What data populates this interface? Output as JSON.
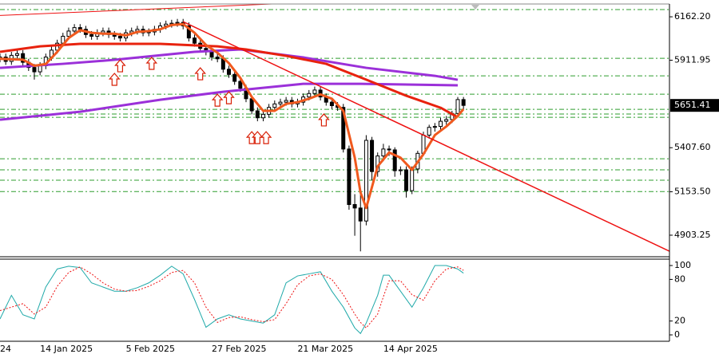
{
  "chart_data": [
    {
      "type": "candlestick",
      "categories": [
        "24",
        null,
        null,
        null,
        null,
        null,
        null,
        "14 Jan 2025",
        null,
        null,
        null,
        null,
        null,
        null,
        null,
        null,
        null,
        null,
        null,
        null,
        null,
        null,
        "5 Feb 2025",
        null,
        null,
        null,
        null,
        null,
        null,
        null,
        null,
        null,
        null,
        null,
        null,
        null,
        null,
        "27 Feb 2025",
        null,
        null,
        null,
        null,
        null,
        null,
        null,
        null,
        null,
        null,
        null,
        null,
        null,
        null,
        "21 Mar 2025",
        null,
        null,
        null,
        null,
        null,
        null,
        null,
        null,
        null,
        null,
        null,
        null,
        null,
        null,
        "14 Apr 2025",
        null,
        null,
        null,
        null,
        null,
        null,
        null,
        null,
        null,
        null,
        null,
        null,
        null,
        null
      ],
      "open": [
        5920,
        5930,
        5905,
        5940,
        5950,
        5900,
        5870,
        5845,
        5880,
        5930,
        5970,
        6010,
        6050,
        6080,
        6100,
        6090,
        6060,
        6050,
        6070,
        6080,
        6060,
        6050,
        6040,
        6070,
        6080,
        6090,
        6070,
        6075,
        6090,
        6110,
        6120,
        6125,
        6130,
        6110,
        6040,
        6010,
        5980,
        5960,
        5930,
        5920,
        5860,
        5830,
        5790,
        5750,
        5690,
        5620,
        5580,
        5600,
        5640,
        5660,
        5670,
        5680,
        5660,
        5670,
        5700,
        5720,
        5740,
        5700,
        5670,
        5650,
        5640,
        5400,
        5080,
        5060,
        4985,
        5450,
        5270,
        5360,
        5400,
        5395,
        5275,
        5280,
        5160,
        5285,
        5375,
        5480,
        5525,
        5530,
        5560,
        5570,
        5605,
        5685
      ],
      "high": [
        5950,
        5950,
        5960,
        5970,
        5970,
        5920,
        5890,
        5900,
        5950,
        5990,
        6030,
        6070,
        6100,
        6120,
        6120,
        6110,
        6080,
        6090,
        6100,
        6100,
        6080,
        6070,
        6090,
        6100,
        6110,
        6110,
        6095,
        6110,
        6130,
        6140,
        6145,
        6150,
        6150,
        6130,
        6060,
        6030,
        6000,
        5980,
        5950,
        5940,
        5880,
        5850,
        5810,
        5770,
        5710,
        5640,
        5620,
        5660,
        5680,
        5690,
        5700,
        5700,
        5690,
        5720,
        5740,
        5760,
        5760,
        5720,
        5690,
        5670,
        5660,
        5420,
        5140,
        5150,
        5480,
        5470,
        5380,
        5430,
        5420,
        5410,
        5300,
        5300,
        5300,
        5390,
        5500,
        5540,
        5550,
        5580,
        5590,
        5620,
        5700,
        5700
      ],
      "low": [
        5900,
        5885,
        5885,
        5920,
        5880,
        5850,
        5800,
        5825,
        5860,
        5910,
        5950,
        5990,
        6030,
        6060,
        6070,
        6040,
        6030,
        6030,
        6050,
        6040,
        6030,
        6020,
        6020,
        6050,
        6060,
        6050,
        6050,
        6055,
        6070,
        6090,
        6100,
        6105,
        6090,
        6020,
        5990,
        5960,
        5940,
        5910,
        5900,
        5840,
        5810,
        5770,
        5730,
        5670,
        5600,
        5560,
        5560,
        5580,
        5620,
        5640,
        5650,
        5640,
        5640,
        5650,
        5680,
        5700,
        5680,
        5650,
        5630,
        5620,
        5380,
        5050,
        4900,
        4810,
        4960,
        5220,
        5240,
        5330,
        5360,
        5240,
        5250,
        5120,
        5140,
        5260,
        5360,
        5460,
        5500,
        5510,
        5540,
        5550,
        5590,
        5630
      ],
      "close": [
        5930,
        5905,
        5940,
        5950,
        5900,
        5870,
        5845,
        5880,
        5930,
        5970,
        6010,
        6050,
        6080,
        6100,
        6090,
        6060,
        6050,
        6070,
        6080,
        6060,
        6050,
        6040,
        6070,
        6080,
        6090,
        6070,
        6075,
        6090,
        6110,
        6120,
        6125,
        6130,
        6110,
        6040,
        6010,
        5980,
        5960,
        5930,
        5920,
        5860,
        5830,
        5790,
        5750,
        5690,
        5620,
        5580,
        5600,
        5640,
        5660,
        5670,
        5680,
        5660,
        5670,
        5700,
        5720,
        5740,
        5700,
        5670,
        5650,
        5640,
        5400,
        5080,
        5060,
        4985,
        5450,
        5270,
        5360,
        5400,
        5395,
        5275,
        5280,
        5160,
        5285,
        5375,
        5480,
        5525,
        5530,
        5560,
        5570,
        5605,
        5685,
        5651.41
      ],
      "up_color": "#ffffff",
      "down_color": "#000000",
      "outline_color": "#000000",
      "xlim": [
        0,
        117
      ],
      "ylim": [
        4779,
        6236
      ],
      "yticks": [
        {
          "value": 6162.2,
          "label": "6162.20"
        },
        5911.95,
        {
          "value": 5407.6,
          "label": "5407.60"
        },
        {
          "value": 5153.5,
          "label": "5153.50"
        },
        4903.25
      ],
      "levels": [
        6204,
        5923,
        5822,
        5716,
        5629,
        5602,
        5583,
        5344,
        5280,
        5220,
        5155
      ],
      "level_color": "#2e9e2e",
      "lines": [
        {
          "color": "#9b30d9",
          "width": 3,
          "x": [
            0,
            11,
            20,
            34,
            42,
            53,
            64,
            76,
            80
          ],
          "values": [
            5868,
            5891,
            5914,
            5960,
            5974,
            5928,
            5868,
            5822,
            5799
          ]
        },
        {
          "color": "#9b30d9",
          "width": 3,
          "x": [
            0,
            14,
            28,
            39,
            53,
            63,
            80
          ],
          "values": [
            5569,
            5615,
            5684,
            5730,
            5776,
            5776,
            5767
          ]
        },
        {
          "color": "#e8220e",
          "width": 3,
          "x": [
            0,
            7,
            14,
            28,
            38,
            43,
            50,
            57,
            64,
            71,
            77,
            80
          ],
          "values": [
            5960,
            5992,
            6006,
            6006,
            5992,
            5974,
            5937,
            5891,
            5800,
            5707,
            5638,
            5583
          ]
        },
        {
          "color": "#f0591e",
          "width": 3,
          "x": [
            0,
            4,
            6,
            8,
            10,
            12,
            14,
            16,
            18,
            20,
            22,
            24,
            26,
            28,
            30,
            32,
            34,
            36,
            38,
            40,
            42,
            44,
            46,
            48,
            50,
            52,
            54,
            56,
            58,
            60,
            62,
            63,
            64,
            66,
            68,
            70,
            72,
            74,
            76,
            78,
            80,
            81
          ],
          "values": [
            5920,
            5915,
            5880,
            5890,
            5960,
            6040,
            6085,
            6070,
            6065,
            6065,
            6055,
            6075,
            6080,
            6090,
            6115,
            6120,
            6070,
            6000,
            5955,
            5895,
            5810,
            5700,
            5620,
            5620,
            5660,
            5670,
            5690,
            5715,
            5690,
            5620,
            5350,
            5150,
            5060,
            5300,
            5380,
            5350,
            5280,
            5370,
            5480,
            5530,
            5590,
            5630
          ]
        },
        {
          "color": "#ee1111",
          "width": 1.5,
          "x": [
            32,
            117
          ],
          "values": [
            6134,
            4811
          ]
        },
        {
          "color": "#ee1111",
          "width": 1,
          "x": [
            0,
            47.5
          ],
          "values": [
            6170,
            6236
          ]
        }
      ],
      "arrows": {
        "color": "#f5821f",
        "outline": "#d81e05",
        "x": [
          20,
          21,
          26.5,
          35,
          38,
          40,
          44,
          45,
          46.5,
          56.6
        ],
        "values": [
          5836,
          5914,
          5928,
          5868,
          5716,
          5730,
          5500,
          5500,
          5500,
          5602
        ]
      }
    },
    {
      "type": "line",
      "x": [
        0,
        2,
        4,
        6,
        8,
        10,
        12,
        14,
        16,
        18,
        20,
        22,
        24,
        26,
        28,
        30,
        32,
        34,
        36,
        38,
        40,
        42,
        44,
        46,
        48,
        50,
        52,
        54,
        56,
        58,
        60,
        62,
        63,
        64,
        66,
        67,
        68,
        70,
        72,
        74,
        76,
        78,
        80,
        81
      ],
      "series": [
        {
          "color": "#1fa9a9",
          "dash": false,
          "values": [
            23,
            57,
            29,
            23,
            69,
            95,
            99,
            97,
            75,
            69,
            63,
            63,
            68,
            75,
            86,
            99,
            88,
            51,
            11,
            23,
            29,
            23,
            20,
            17,
            29,
            75,
            85,
            88,
            91,
            63,
            40,
            10,
            2,
            17,
            57,
            86,
            86,
            63,
            40,
            68,
            100,
            100,
            95,
            89
          ]
        },
        {
          "color": "#ee1111",
          "dash": true,
          "values": [
            35,
            40,
            45,
            30,
            40,
            70,
            90,
            98,
            88,
            75,
            66,
            63,
            64,
            70,
            78,
            90,
            93,
            75,
            40,
            18,
            25,
            26,
            22,
            19,
            22,
            45,
            72,
            85,
            88,
            80,
            58,
            30,
            18,
            10,
            30,
            55,
            78,
            78,
            58,
            50,
            78,
            95,
            98,
            93
          ]
        }
      ],
      "xlim": [
        0,
        117
      ],
      "ylim": [
        -9.2,
        109.2
      ],
      "yticks": [
        100,
        80,
        20,
        0
      ]
    }
  ]
}
